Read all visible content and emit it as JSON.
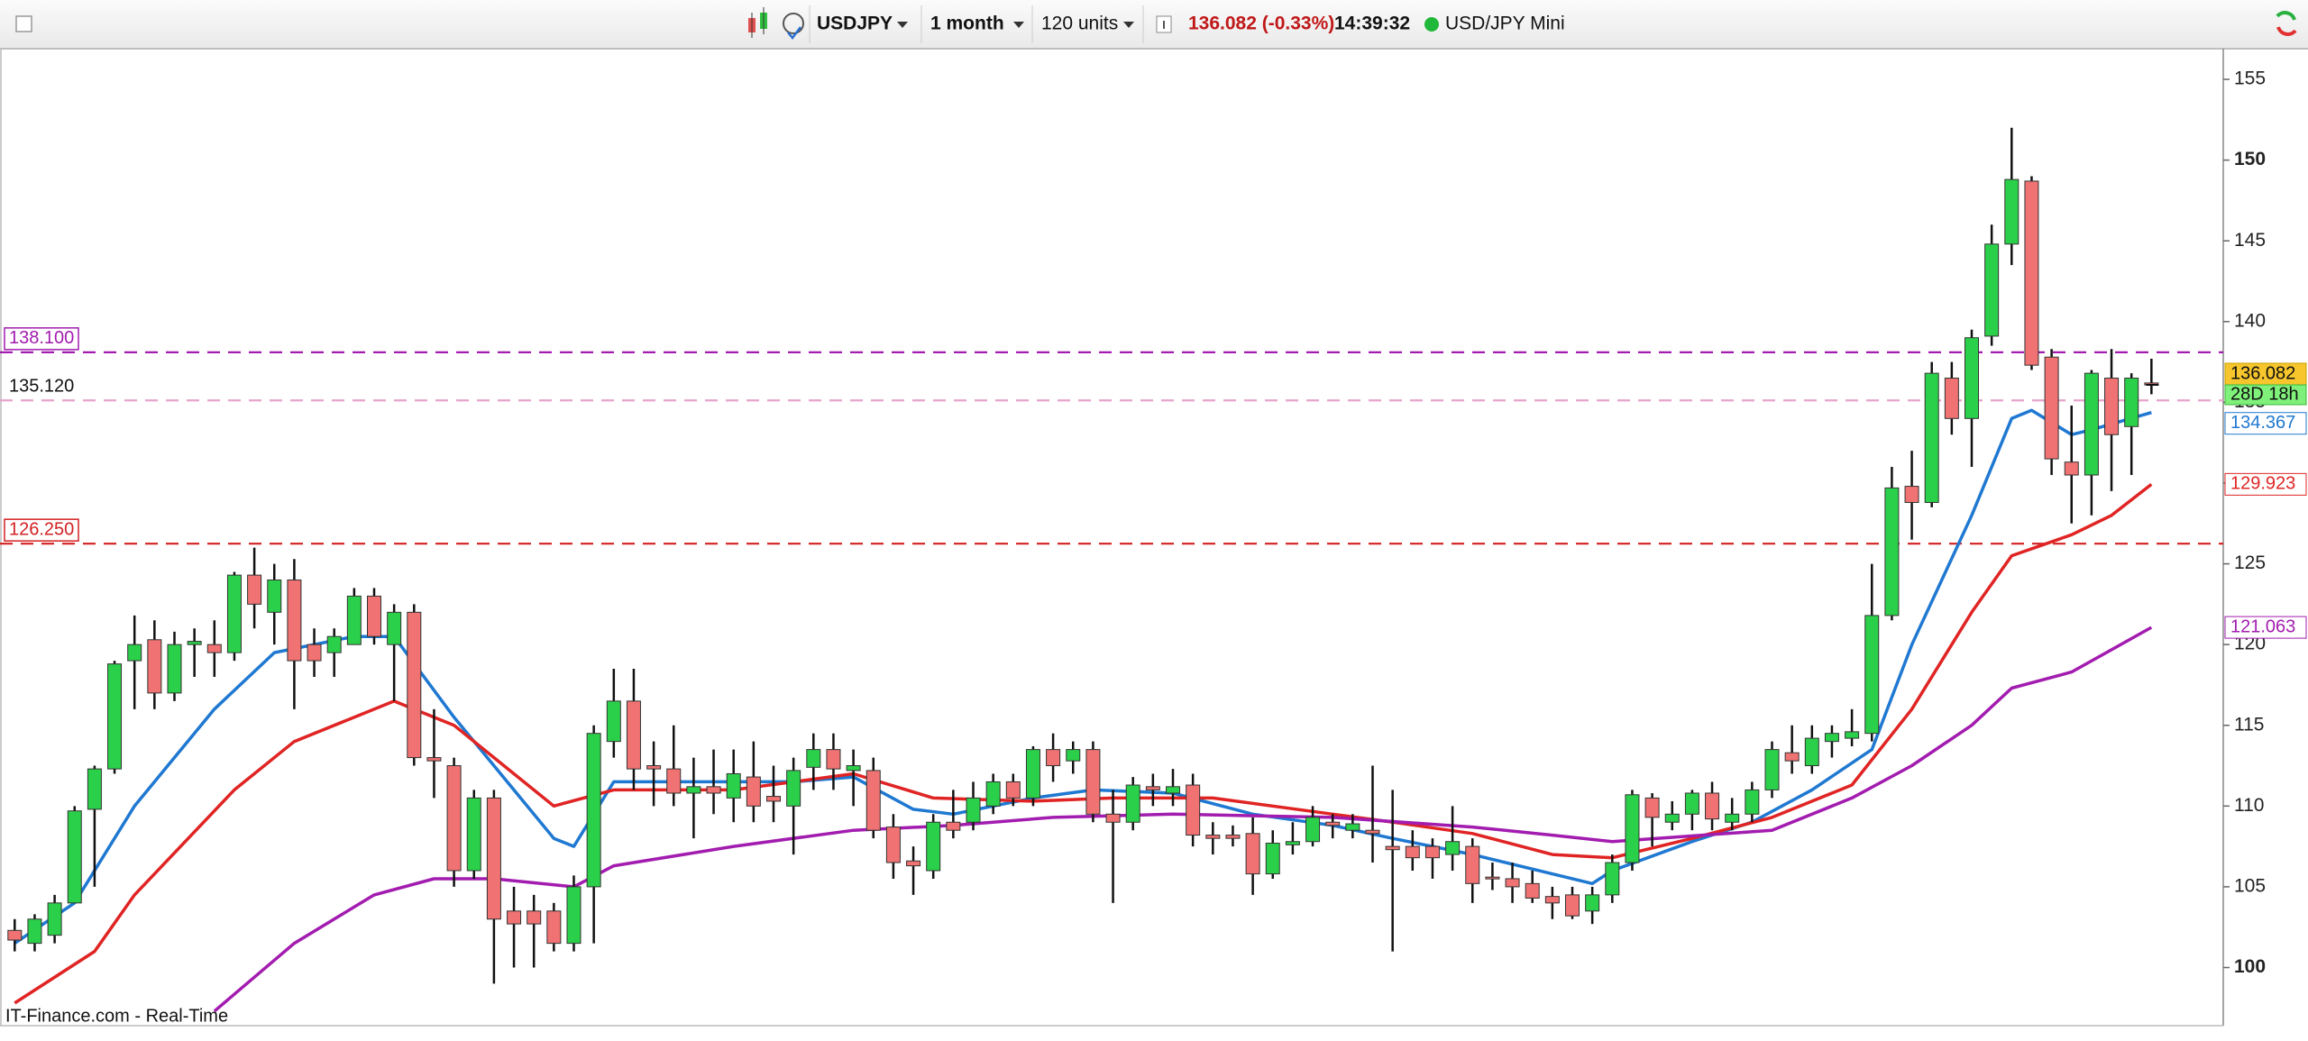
{
  "toolbar": {
    "symbol": "USDJPY",
    "period": "1 month",
    "units": "120 units",
    "quote": "136.082 (-0.33%)",
    "time": "14:39:32",
    "instrument": "USD/JPY Mini"
  },
  "footer": "IT-Finance.com - Real-Time",
  "chart_data": {
    "type": "candlestick",
    "up_color": "#2bd04a",
    "down_color": "#f07272",
    "open": [
      102.3,
      101.5,
      102,
      104,
      109.8,
      112.3,
      119,
      120.3,
      117,
      120,
      120,
      119.5,
      124.3,
      122,
      124,
      120,
      119.5,
      120,
      123,
      120,
      122,
      113,
      112.5,
      106,
      110.5,
      103.5,
      103.5,
      103.5,
      101.5,
      105,
      114,
      116.5,
      112.5,
      112.3,
      110.8,
      111.2,
      110.5,
      111.8,
      110.6,
      110,
      112.4,
      113.5,
      112.2,
      112.2,
      108.7,
      106.6,
      106,
      109,
      109,
      110,
      111.5,
      110.5,
      113.5,
      112.8,
      113.5,
      109.5,
      109,
      111.2,
      110.8,
      111.3,
      108.2,
      108.2,
      108.3,
      105.8,
      107.6,
      107.8,
      109,
      108.5,
      108.5,
      107.5,
      107.5,
      107.5,
      107,
      107.5,
      105.6,
      105.5,
      105.2,
      104.4,
      104.5,
      103.5,
      104.5,
      106.5,
      110.5,
      109,
      109.5,
      110.8,
      109,
      109.5,
      111,
      113.3,
      112.5,
      114,
      114.2,
      114.5,
      121.8,
      129.8,
      128.8,
      136.5,
      134,
      139.1,
      144.8,
      148.7,
      137.8,
      131.3,
      130.5,
      136.5,
      133.5,
      136.2
    ],
    "high": [
      103,
      103.3,
      104.5,
      110,
      112.5,
      119,
      121.8,
      121.5,
      120.8,
      121,
      121.5,
      124.5,
      126,
      125,
      125.3,
      121,
      121,
      123.5,
      123.5,
      122.5,
      122.5,
      116,
      113,
      111,
      111,
      105,
      104.5,
      104,
      105.7,
      115,
      118.5,
      118.5,
      114,
      115,
      113,
      113.5,
      113.5,
      114,
      112.5,
      113,
      114.5,
      114.5,
      113.5,
      113,
      109.5,
      107.5,
      109.5,
      111,
      111.5,
      112,
      112,
      113.7,
      114.5,
      114,
      114,
      111,
      111.8,
      112,
      112.3,
      112,
      109,
      108.8,
      109.3,
      108.5,
      109,
      110,
      109.5,
      109.5,
      112.5,
      111,
      108.5,
      108,
      110,
      108,
      106.5,
      106.5,
      106,
      105,
      105,
      105,
      107,
      111,
      110.8,
      110.3,
      111,
      111.5,
      110.5,
      111.5,
      114,
      115,
      115,
      115,
      116,
      125,
      131,
      132,
      137.5,
      137.5,
      139.5,
      146,
      152,
      149,
      138.3,
      134.8,
      137,
      138.3,
      136.8,
      137.7
    ],
    "low": [
      101,
      101,
      101.5,
      104,
      105,
      112,
      116,
      116,
      116.5,
      118,
      118,
      119,
      121,
      120,
      116,
      118,
      118,
      120,
      120,
      116.5,
      112.5,
      110.5,
      105,
      105.5,
      99,
      100,
      100,
      101,
      101,
      101.5,
      113,
      111,
      110,
      110,
      108,
      109.5,
      109,
      109,
      109,
      107,
      111,
      111,
      110,
      108,
      105.5,
      104.5,
      105.5,
      108,
      108.5,
      109.5,
      110,
      110,
      111.5,
      112,
      109,
      104,
      108.5,
      110,
      110,
      107.5,
      107,
      107.5,
      104.5,
      105.5,
      107,
      107.5,
      108,
      108,
      106.5,
      101,
      106,
      105.5,
      106,
      104,
      104.8,
      104,
      104,
      103,
      103,
      102.7,
      104,
      106,
      107.5,
      108.5,
      108.5,
      108.5,
      108.5,
      109,
      110.5,
      112,
      112,
      113,
      113.7,
      114,
      121.5,
      126.5,
      128.5,
      133,
      131,
      138.5,
      143.5,
      137,
      130.5,
      127.5,
      128,
      129.5,
      130.5,
      135.5
    ],
    "close": [
      101.7,
      103,
      104,
      109.7,
      112.3,
      118.8,
      120,
      117,
      120,
      120.2,
      119.5,
      124.3,
      122.5,
      124,
      119,
      119,
      120.5,
      123,
      120.5,
      122,
      113,
      112.8,
      106,
      110.5,
      103,
      102.7,
      102.7,
      101.5,
      105,
      114.5,
      116.5,
      112.3,
      112.3,
      110.8,
      111.2,
      110.8,
      112,
      110,
      110.3,
      112.2,
      113.5,
      112.3,
      112.5,
      108.5,
      106.5,
      106.3,
      109,
      108.5,
      110.5,
      111.5,
      110.5,
      113.5,
      112.5,
      113.5,
      109.5,
      109,
      111.3,
      111,
      111.2,
      108.2,
      108,
      108,
      105.8,
      107.7,
      107.8,
      109.3,
      108.8,
      108.9,
      108.3,
      107.3,
      106.8,
      106.8,
      107.8,
      105.2,
      105.5,
      105,
      104.3,
      104,
      103.2,
      104.5,
      106.5,
      110.7,
      109.3,
      109.5,
      110.8,
      109.2,
      109.5,
      111,
      113.5,
      112.8,
      114.2,
      114.5,
      114.6,
      121.8,
      129.7,
      128.8,
      136.8,
      134,
      139,
      144.8,
      148.8,
      137.3,
      131.5,
      130.5,
      136.8,
      133,
      136.5,
      136.082
    ],
    "lines": [
      {
        "color": "#1f78d1",
        "x": [
          0,
          3,
          6,
          10,
          13,
          17,
          19,
          22,
          25,
          27,
          28,
          30,
          33,
          39,
          42,
          45,
          47,
          51,
          54,
          58,
          62,
          66,
          69,
          73,
          77,
          79,
          80,
          84,
          87,
          90,
          93,
          95,
          98,
          100,
          101,
          103,
          104,
          107
        ],
        "values": [
          101.5,
          104,
          110,
          116,
          119.5,
          120.5,
          120.5,
          115.5,
          111,
          108,
          107.5,
          111.5,
          111.5,
          111.5,
          111.8,
          109.8,
          109.5,
          110.5,
          111,
          110.8,
          109.5,
          108.8,
          108,
          107,
          105.8,
          105.2,
          106,
          107.8,
          109,
          111,
          113.5,
          120,
          128,
          134,
          134.5,
          133,
          133.3,
          134.367
        ]
      },
      {
        "color": "#e02424",
        "x": [
          0,
          4,
          6,
          11,
          14,
          19,
          22,
          25,
          27,
          30,
          36,
          42,
          46,
          51,
          55,
          60,
          66,
          69,
          73,
          77,
          80,
          84,
          88,
          92,
          95,
          98,
          100,
          103,
          105,
          107
        ],
        "values": [
          97.8,
          101,
          104.5,
          111,
          114,
          116.5,
          115,
          112,
          110,
          111,
          111,
          112,
          110.5,
          110.3,
          110.5,
          110.5,
          109.5,
          109,
          108.3,
          107,
          106.8,
          108,
          109.3,
          111.3,
          116,
          122,
          125.5,
          126.8,
          128,
          129.923
        ]
      },
      {
        "color": "#a21caf",
        "x": [
          10,
          14,
          18,
          21,
          24,
          28,
          30,
          36,
          42,
          47,
          52,
          58,
          66,
          73,
          77,
          80,
          88,
          92,
          95,
          98,
          100,
          103,
          107
        ],
        "values": [
          97.3,
          101.5,
          104.5,
          105.5,
          105.5,
          105,
          106.3,
          107.5,
          108.5,
          108.8,
          109.3,
          109.5,
          109.3,
          108.7,
          108.2,
          107.8,
          108.5,
          110.5,
          112.5,
          115,
          117.3,
          118.3,
          121.063
        ]
      }
    ],
    "levels": [
      {
        "value": 138.1,
        "label": "138.100",
        "color": "#a21caf",
        "boxed": true
      },
      {
        "value": 135.12,
        "label": "135.120",
        "color": "#e8a3cc",
        "boxed": false
      },
      {
        "value": 126.25,
        "label": "126.250",
        "color": "#d42020",
        "boxed": true
      }
    ],
    "countdown": "28D 18h",
    "ylim": [
      96.4,
      156.9
    ],
    "yticks": [
      100,
      105,
      110,
      115,
      120,
      125,
      130,
      135,
      140,
      145,
      150,
      155
    ]
  }
}
